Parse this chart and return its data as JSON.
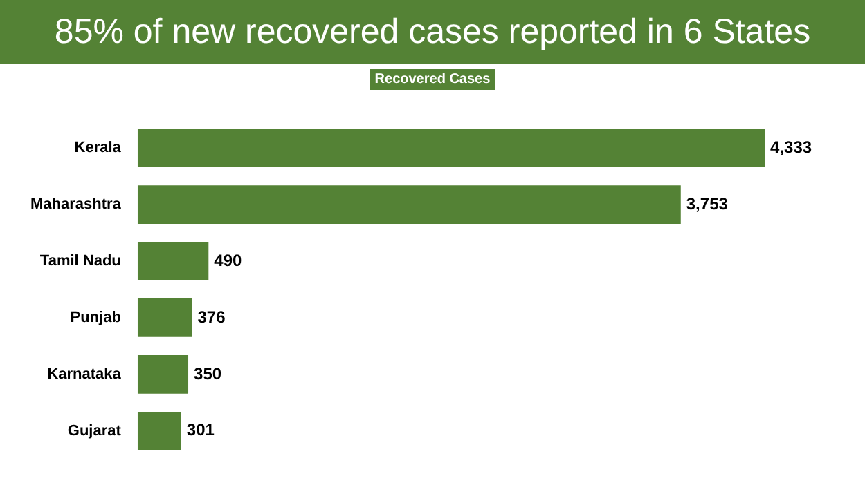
{
  "chart_data": {
    "type": "bar",
    "title": "85% of new recovered cases reported in 6 States",
    "orientation": "horizontal",
    "categories": [
      "Kerala",
      "Maharashtra",
      "Tamil Nadu",
      "Punjab",
      "Karnataka",
      "Gujarat"
    ],
    "series": [
      {
        "name": "Recovered Cases",
        "color": "#548235",
        "values": [
          4333,
          3753,
          490,
          376,
          350,
          301
        ],
        "value_labels": [
          "4,333",
          "3,753",
          "490",
          "376",
          "350",
          "301"
        ]
      }
    ],
    "legend": "top"
  }
}
